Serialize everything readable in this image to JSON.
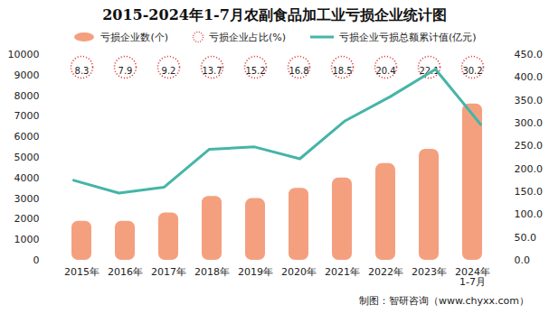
{
  "chart_data": {
    "type": "bar",
    "title": "2015-2024年1-7月农副食品加工业亏损企业统计图",
    "categories": [
      "2015年",
      "2016年",
      "2017年",
      "2018年",
      "2019年",
      "2020年",
      "2021年",
      "2022年",
      "2023年",
      "2024年\n1-7月"
    ],
    "series": [
      {
        "name": "亏损企业数(个)",
        "type": "bar",
        "color": "#f4a07f",
        "values": [
          1900,
          1900,
          2300,
          3100,
          3000,
          3500,
          4000,
          4700,
          5400,
          7600
        ]
      },
      {
        "name": "亏损企业占比(%)",
        "type": "scatter",
        "marker": "circle",
        "line_style": "dotted",
        "color": "#e04848",
        "data_labels": true,
        "values": [
          8.3,
          7.9,
          9.2,
          13.7,
          15.2,
          16.8,
          18.5,
          20.4,
          22.1,
          30.2
        ]
      },
      {
        "name": "亏损企业亏损总额累计值(亿元)",
        "type": "line",
        "axis": "y2",
        "color": "#45b5a8",
        "values": [
          175,
          147,
          160,
          243,
          248,
          222,
          305,
          358,
          418,
          297
        ]
      }
    ],
    "ylim": [
      0,
      10000
    ],
    "yticks": [
      0,
      1000,
      2000,
      3000,
      4000,
      5000,
      6000,
      7000,
      8000,
      9000,
      10000
    ],
    "y2lim": [
      0,
      450
    ],
    "y2ticks": [
      {
        "value": 0,
        "label": "0.0"
      },
      {
        "value": 50,
        "label": "50.0"
      },
      {
        "value": 100,
        "label": "100.0"
      },
      {
        "value": 150,
        "label": "150.0"
      },
      {
        "value": 200,
        "label": "200.0"
      },
      {
        "value": 250,
        "label": "250.0"
      },
      {
        "value": 300,
        "label": "300.0"
      },
      {
        "value": 350,
        "label": "350.0"
      },
      {
        "value": 400,
        "label": "400.0"
      },
      {
        "value": 450,
        "label": "450.0"
      }
    ],
    "legend": "top",
    "annotations": [
      "制图：智研咨询（www.chyxx.com）"
    ]
  }
}
